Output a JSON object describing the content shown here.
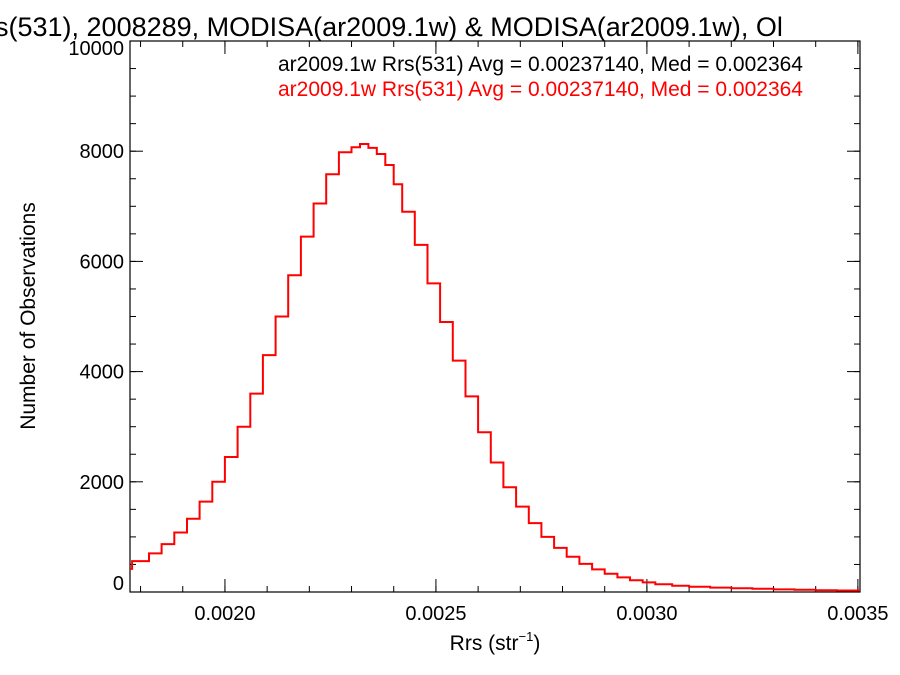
{
  "chart_data": {
    "type": "line",
    "title": "s(531), 2008289, MODISA(ar2009.1w) & MODISA(ar2009.1w), Ol",
    "xlabel_main": "Rrs (str",
    "xlabel_sup": "−1",
    "xlabel_end": ")",
    "ylabel": "Number of Observations",
    "xlim": [
      0.001775,
      0.003505
    ],
    "ylim": [
      0,
      10000
    ],
    "xticks": [
      {
        "value": 0.002,
        "label": "0.0020"
      },
      {
        "value": 0.0025,
        "label": "0.0025"
      },
      {
        "value": 0.003,
        "label": "0.0030"
      },
      {
        "value": 0.0035,
        "label": "0.0035"
      }
    ],
    "xminor_step": 0.0001,
    "yticks": [
      {
        "value": 0,
        "label": "0"
      },
      {
        "value": 2000,
        "label": "2000"
      },
      {
        "value": 4000,
        "label": "4000"
      },
      {
        "value": 6000,
        "label": "6000"
      },
      {
        "value": 8000,
        "label": "8000"
      },
      {
        "value": 10000,
        "label": "10000"
      }
    ],
    "yminor_step": 500,
    "legend": [
      {
        "text": "ar2009.1w Rrs(531) Avg = 0.00237140, Med = 0.002364",
        "color": "#000000"
      },
      {
        "text": "ar2009.1w Rrs(531) Avg = 0.00237140, Med = 0.002364",
        "color": "#ff0000"
      }
    ],
    "series": [
      {
        "color": "#ff0000",
        "points": [
          [
            0.00178,
            420
          ],
          [
            0.00182,
            560
          ],
          [
            0.00185,
            700
          ],
          [
            0.00188,
            870
          ],
          [
            0.00191,
            1080
          ],
          [
            0.00194,
            1330
          ],
          [
            0.00197,
            1640
          ],
          [
            0.002,
            2000
          ],
          [
            0.00203,
            2450
          ],
          [
            0.00206,
            3000
          ],
          [
            0.00209,
            3600
          ],
          [
            0.00212,
            4300
          ],
          [
            0.00215,
            5000
          ],
          [
            0.00218,
            5750
          ],
          [
            0.00221,
            6450
          ],
          [
            0.00224,
            7050
          ],
          [
            0.00227,
            7580
          ],
          [
            0.0023,
            7980
          ],
          [
            0.00232,
            8070
          ],
          [
            0.00234,
            8130
          ],
          [
            0.00236,
            8060
          ],
          [
            0.00238,
            7950
          ],
          [
            0.0024,
            7750
          ],
          [
            0.00242,
            7400
          ],
          [
            0.00245,
            6900
          ],
          [
            0.00248,
            6300
          ],
          [
            0.00251,
            5600
          ],
          [
            0.00254,
            4900
          ],
          [
            0.00257,
            4200
          ],
          [
            0.0026,
            3550
          ],
          [
            0.00263,
            2900
          ],
          [
            0.00266,
            2350
          ],
          [
            0.00269,
            1900
          ],
          [
            0.00272,
            1550
          ],
          [
            0.00275,
            1250
          ],
          [
            0.00278,
            1000
          ],
          [
            0.00281,
            800
          ],
          [
            0.00284,
            640
          ],
          [
            0.00287,
            510
          ],
          [
            0.0029,
            410
          ],
          [
            0.00293,
            330
          ],
          [
            0.00296,
            265
          ],
          [
            0.00299,
            215
          ],
          [
            0.00302,
            175
          ],
          [
            0.00306,
            140
          ],
          [
            0.0031,
            115
          ],
          [
            0.00315,
            95
          ],
          [
            0.0032,
            80
          ],
          [
            0.00325,
            68
          ],
          [
            0.0033,
            58
          ],
          [
            0.00335,
            48
          ],
          [
            0.0034,
            40
          ],
          [
            0.00345,
            33
          ],
          [
            0.0035,
            28
          ]
        ]
      }
    ]
  }
}
